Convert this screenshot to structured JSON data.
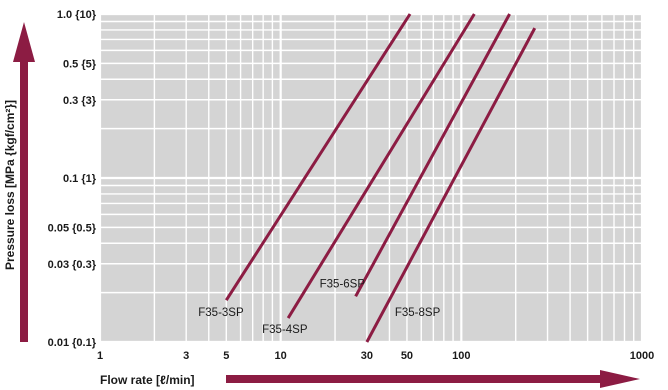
{
  "colors": {
    "plot_bg": "#d4d4d4",
    "grid": "#ffffff",
    "series": "#8c1c43",
    "arrow": "#8c1c43",
    "text": "#1a1a1a"
  },
  "chart_data": {
    "type": "line",
    "scale": {
      "x": "log",
      "y": "log"
    },
    "xlim": [
      1,
      1000
    ],
    "ylim": [
      0.01,
      1.0
    ],
    "grid": true,
    "xlabel": "Flow rate [ℓ/min]",
    "ylabel": "Pressure loss [MPa {kgf/cm²}]",
    "x_ticks": [
      {
        "value": 1,
        "label": "1"
      },
      {
        "value": 3,
        "label": "3"
      },
      {
        "value": 5,
        "label": "5"
      },
      {
        "value": 10,
        "label": "10"
      },
      {
        "value": 30,
        "label": "30"
      },
      {
        "value": 50,
        "label": "50"
      },
      {
        "value": 100,
        "label": "100"
      },
      {
        "value": 1000,
        "label": "1000"
      }
    ],
    "y_ticks": [
      {
        "value": 0.01,
        "label": "0.01 {0.1}"
      },
      {
        "value": 0.03,
        "label": "0.03 {0.3}"
      },
      {
        "value": 0.05,
        "label": "0.05 {0.5}"
      },
      {
        "value": 0.1,
        "label": "0.1 {1}"
      },
      {
        "value": 0.3,
        "label": "0.3 {3}"
      },
      {
        "value": 0.5,
        "label": "0.5 {5}"
      },
      {
        "value": 1.0,
        "label": "1.0 {10}"
      }
    ],
    "series": [
      {
        "name": "F35-3SP",
        "points": [
          [
            5.0,
            0.018
          ],
          [
            52,
            1.0
          ]
        ]
      },
      {
        "name": "F35-4SP",
        "points": [
          [
            11,
            0.014
          ],
          [
            118,
            1.0
          ]
        ]
      },
      {
        "name": "F35-6SP",
        "points": [
          [
            26,
            0.019
          ],
          [
            185,
            1.0
          ]
        ]
      },
      {
        "name": "F35-8SP",
        "points": [
          [
            30,
            0.01
          ],
          [
            255,
            0.82
          ]
        ]
      }
    ]
  }
}
